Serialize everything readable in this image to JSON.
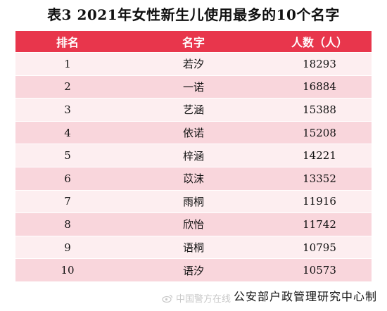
{
  "title": "表3  2021年女性新生儿使用最多的10个名字",
  "table": {
    "headers": [
      "排名",
      "名字",
      "人数（人）"
    ],
    "rows": [
      {
        "rank": "1",
        "name": "若汐",
        "count": "18293"
      },
      {
        "rank": "2",
        "name": "一诺",
        "count": "16884"
      },
      {
        "rank": "3",
        "name": "艺涵",
        "count": "15388"
      },
      {
        "rank": "4",
        "name": "依诺",
        "count": "15208"
      },
      {
        "rank": "5",
        "name": "梓涵",
        "count": "14221"
      },
      {
        "rank": "6",
        "name": "苡沫",
        "count": "13352"
      },
      {
        "rank": "7",
        "name": "雨桐",
        "count": "11916"
      },
      {
        "rank": "8",
        "name": "欣怡",
        "count": "11742"
      },
      {
        "rank": "9",
        "name": "语桐",
        "count": "10795"
      },
      {
        "rank": "10",
        "name": "语汐",
        "count": "10573"
      }
    ]
  },
  "watermark": "中国警方在线",
  "source": "公安部户政管理研究中心制",
  "colors": {
    "header_bg": "#e8364c",
    "row_light": "#fdeef0",
    "row_dark": "#f9d6dc"
  },
  "icons": {
    "watermark_icon": "weibo-icon"
  }
}
